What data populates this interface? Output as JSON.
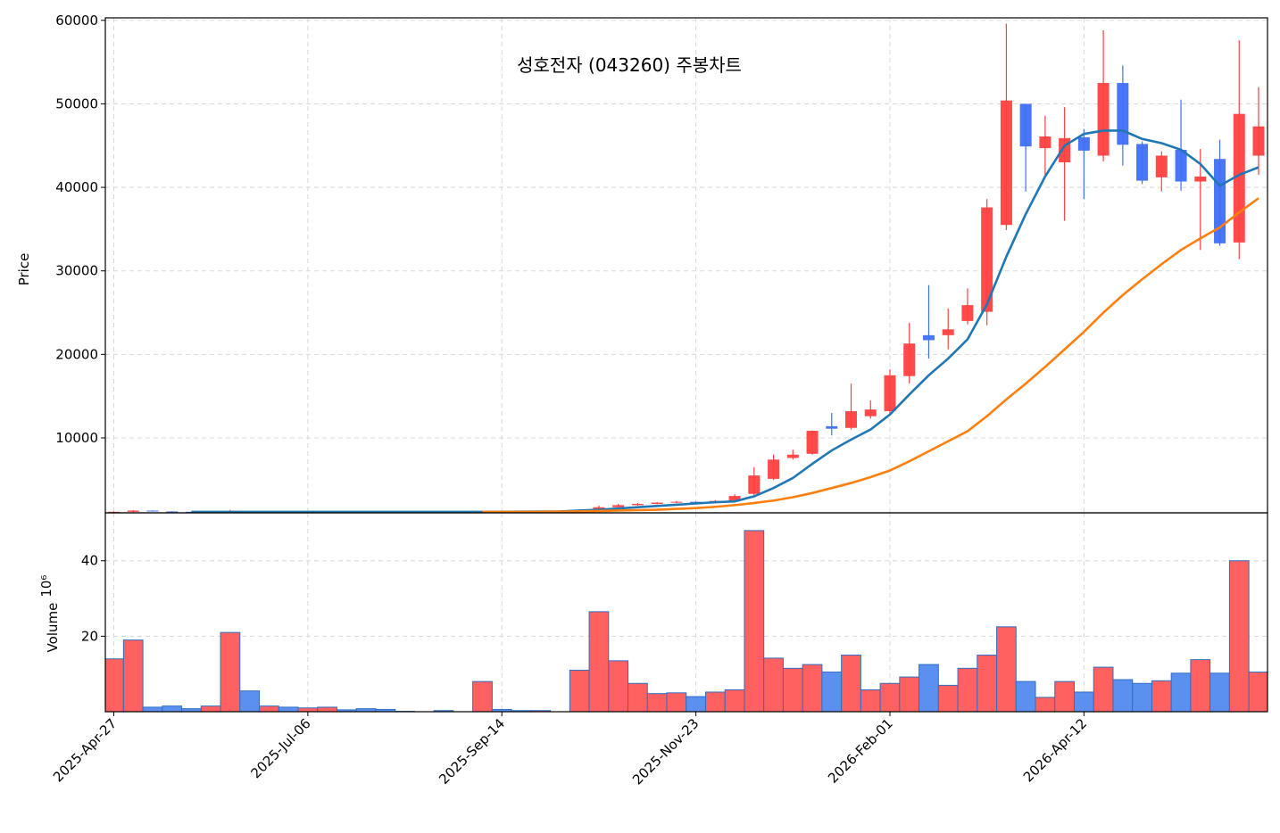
{
  "chart_data": [
    {
      "type": "candlestick",
      "title": "성호전자 (043260) 주봉차트",
      "ylabel": "Price",
      "categories": [
        "2025-Apr-27",
        null,
        null,
        null,
        null,
        null,
        null,
        null,
        null,
        null,
        "2025-Jul-06",
        null,
        null,
        null,
        null,
        null,
        null,
        null,
        null,
        null,
        "2025-Sep-14",
        null,
        null,
        null,
        null,
        null,
        null,
        null,
        null,
        null,
        "2025-Nov-23",
        null,
        null,
        null,
        null,
        null,
        null,
        null,
        null,
        null,
        "2026-Feb-01",
        null,
        null,
        null,
        null,
        null,
        null,
        null,
        null,
        null,
        "2026-Apr-12",
        null,
        null,
        null,
        null,
        null,
        null,
        null,
        null,
        null
      ],
      "open": [
        1050,
        1150,
        1300,
        1200,
        1150,
        1120,
        1150,
        1220,
        1150,
        1170,
        1150,
        1160,
        1170,
        1160,
        1150,
        1145,
        1142,
        1142,
        1140,
        1140,
        1250,
        1220,
        1210,
        1220,
        1220,
        1400,
        1700,
        1950,
        2100,
        2250,
        2350,
        2200,
        2450,
        3300,
        5100,
        7600,
        8100,
        11400,
        11200,
        12600,
        13200,
        17400,
        22300,
        22300,
        24000,
        25100,
        35500,
        50000,
        44700,
        43000,
        46000,
        43800,
        52500,
        45200,
        41200,
        44500,
        40700,
        43400,
        33400,
        43800
      ],
      "high": [
        1200,
        1350,
        1320,
        1220,
        1170,
        1160,
        1380,
        1240,
        1180,
        1180,
        1170,
        1180,
        1175,
        1170,
        1160,
        1150,
        1142,
        1150,
        1140,
        1300,
        1260,
        1240,
        1230,
        1220,
        1450,
        1900,
        2100,
        2200,
        2300,
        2450,
        2400,
        2550,
        3250,
        6500,
        8000,
        8600,
        10900,
        13000,
        16500,
        14500,
        18200,
        23800,
        28300,
        25500,
        27900,
        38600,
        59600,
        50000,
        48600,
        49600,
        47000,
        58800,
        54600,
        45500,
        44300,
        50500,
        44600,
        45700,
        57600,
        52000
      ],
      "low": [
        1030,
        1100,
        1180,
        1120,
        1100,
        1100,
        1120,
        1130,
        1130,
        1140,
        1140,
        1150,
        1150,
        1145,
        1140,
        1140,
        1142,
        1135,
        1140,
        1120,
        1200,
        1200,
        1200,
        1220,
        1200,
        1380,
        1650,
        1900,
        2050,
        2200,
        2150,
        2180,
        2400,
        2950,
        4950,
        7400,
        8000,
        10300,
        11000,
        12300,
        12700,
        16500,
        19500,
        20600,
        23600,
        23500,
        34900,
        39500,
        41500,
        36000,
        38600,
        43100,
        42600,
        40400,
        39500,
        39600,
        32500,
        33000,
        31400,
        41500
      ],
      "close": [
        1150,
        1300,
        1200,
        1150,
        1120,
        1150,
        1220,
        1150,
        1170,
        1150,
        1160,
        1170,
        1160,
        1150,
        1145,
        1142,
        1142,
        1140,
        1140,
        1250,
        1220,
        1210,
        1220,
        1220,
        1400,
        1700,
        1950,
        2100,
        2250,
        2350,
        2200,
        2450,
        3050,
        5500,
        7400,
        8000,
        10850,
        11100,
        13200,
        13400,
        17500,
        21300,
        21700,
        23000,
        25900,
        37600,
        50400,
        44900,
        46100,
        45900,
        44400,
        52500,
        45100,
        40800,
        43800,
        40700,
        41300,
        33300,
        48800,
        47300
      ],
      "up_color": "#ff4040",
      "down_color": "#3f6ff5",
      "series": [
        {
          "color": "#1f77b4",
          "values": [
            null,
            null,
            null,
            null,
            1150,
            1150,
            1150,
            1150,
            1150,
            1150,
            1150,
            1150,
            1150,
            1150,
            1150,
            1150,
            1150,
            1150,
            1150,
            1150,
            1160,
            1170,
            1180,
            1200,
            1300,
            1400,
            1550,
            1700,
            1850,
            2000,
            2150,
            2300,
            2400,
            3000,
            4000,
            5200,
            6900,
            8500,
            9800,
            11000,
            12800,
            15200,
            17500,
            19500,
            21800,
            26000,
            31700,
            36800,
            41300,
            45000,
            46400,
            46800,
            46800,
            45800,
            45300,
            44500,
            42800,
            40200,
            41500,
            42400
          ]
        },
        {
          "color": "#ff7f0e",
          "values": [
            null,
            null,
            null,
            null,
            null,
            null,
            null,
            null,
            null,
            null,
            null,
            null,
            null,
            null,
            null,
            null,
            null,
            null,
            null,
            1150,
            1150,
            1150,
            1160,
            1170,
            1200,
            1250,
            1300,
            1350,
            1400,
            1500,
            1600,
            1750,
            1950,
            2200,
            2500,
            2900,
            3400,
            4000,
            4600,
            5300,
            6100,
            7200,
            8400,
            9600,
            10800,
            12600,
            14600,
            16500,
            18500,
            20600,
            22700,
            25000,
            27100,
            29000,
            30800,
            32500,
            33900,
            35200,
            37000,
            38700
          ]
        }
      ],
      "ylim": [
        1030,
        60300
      ],
      "yticks": [
        10000,
        20000,
        30000,
        40000,
        50000,
        60000
      ],
      "grid": true
    },
    {
      "type": "bar",
      "ylabel": "Volume",
      "offset_label": "10⁶",
      "values": [
        14,
        19,
        1.2,
        1.5,
        0.8,
        1.5,
        21,
        5.5,
        1.5,
        1.2,
        1,
        1.2,
        0.5,
        0.8,
        0.6,
        0.1,
        0,
        0.3,
        0,
        8,
        0.6,
        0.3,
        0.3,
        0,
        11,
        26.5,
        13.5,
        7.5,
        4.8,
        5,
        4,
        5.2,
        5.8,
        48,
        14.2,
        11.5,
        12.5,
        10.5,
        15,
        5.8,
        7.5,
        9.2,
        12.5,
        7,
        11.5,
        15,
        22.5,
        8,
        3.8,
        8,
        5.2,
        11.8,
        8.5,
        7.5,
        8.2,
        10.2,
        13.8,
        10.2,
        40,
        10.5
      ],
      "up_color": "#ff6060",
      "down_color": "#5b8ff0",
      "edge_color": "#2f6fc0",
      "ylim": [
        0,
        52.7
      ],
      "yticks": [
        20,
        40
      ],
      "grid": true
    }
  ]
}
